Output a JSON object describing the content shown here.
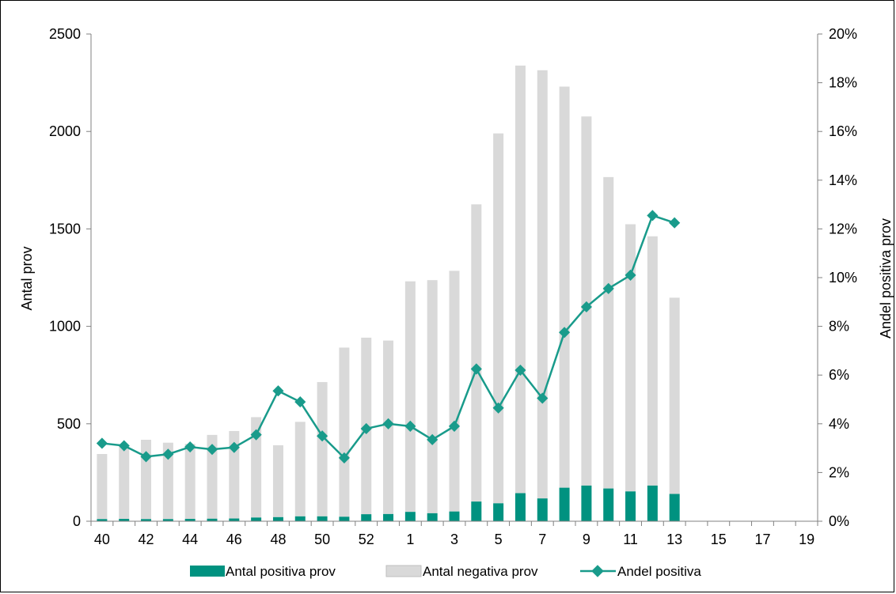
{
  "chart_data": {
    "type": "bar",
    "title": "",
    "ylabel": "Antal prov",
    "y2label": "Andel positiva prov",
    "ylim": [
      0,
      2500
    ],
    "y2lim": [
      0,
      0.2
    ],
    "y_ticks": [
      "0",
      "500",
      "1000",
      "1500",
      "2000",
      "2500"
    ],
    "y2_ticks": [
      "0%",
      "2%",
      "4%",
      "6%",
      "8%",
      "10%",
      "12%",
      "14%",
      "16%",
      "18%",
      "20%"
    ],
    "stacked": true,
    "grid": false,
    "legend_position": "bottom",
    "categories": [
      "40",
      "41",
      "42",
      "43",
      "44",
      "45",
      "46",
      "47",
      "48",
      "49",
      "50",
      "51",
      "52",
      "53",
      "1",
      "2",
      "3",
      "4",
      "5",
      "6",
      "7",
      "8",
      "9",
      "10",
      "11",
      "12",
      "13",
      "14",
      "15",
      "16",
      "17",
      "18",
      "19"
    ],
    "x_tick_labels": [
      "40",
      "42",
      "44",
      "46",
      "48",
      "50",
      "52",
      "1",
      "3",
      "5",
      "7",
      "9",
      "11",
      "13",
      "15",
      "17",
      "19"
    ],
    "series": [
      {
        "name": "Antal positiva prov",
        "kind": "bar",
        "color": "#009280",
        "values": [
          11,
          12,
          11,
          11,
          12,
          13,
          14,
          19,
          21,
          25,
          25,
          23,
          36,
          37,
          48,
          41,
          50,
          101,
          92,
          144,
          117,
          172,
          183,
          168,
          153,
          183,
          140,
          null,
          null,
          null,
          null,
          null,
          null
        ]
      },
      {
        "name": "Antal negativa prov",
        "kind": "bar",
        "color": "#d9d9d9",
        "values": [
          334,
          378,
          407,
          392,
          385,
          430,
          449,
          515,
          369,
          485,
          689,
          868,
          906,
          890,
          1183,
          1196,
          1235,
          1525,
          1898,
          2194,
          2197,
          2058,
          1894,
          1598,
          1371,
          1279,
          1007,
          null,
          null,
          null,
          null,
          null,
          null
        ]
      },
      {
        "name": "Andel positiva",
        "kind": "line",
        "color": "#199b8b",
        "values": [
          0.032,
          0.031,
          0.0265,
          0.0275,
          0.0305,
          0.0295,
          0.0303,
          0.0355,
          0.0535,
          0.049,
          0.035,
          0.026,
          0.038,
          0.04,
          0.039,
          0.0335,
          0.039,
          0.0625,
          0.0465,
          0.062,
          0.0505,
          0.0775,
          0.088,
          0.0955,
          0.101,
          0.1255,
          0.1225,
          null,
          null,
          null,
          null,
          null,
          null
        ]
      }
    ]
  }
}
